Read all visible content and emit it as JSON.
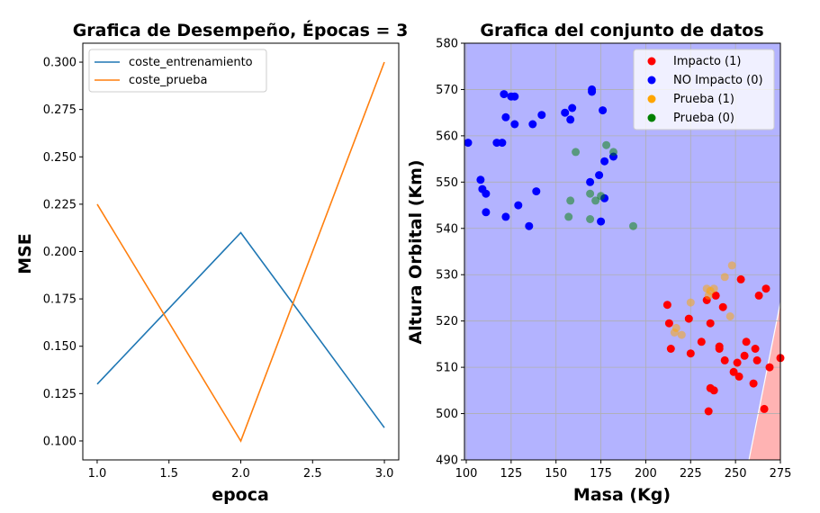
{
  "chart_data": [
    {
      "type": "line",
      "title": "Grafica de Desempeño, Épocas = 3",
      "xlabel": "epoca",
      "ylabel": "MSE",
      "xlim": [
        0.9,
        3.1
      ],
      "ylim": [
        0.09,
        0.31
      ],
      "xticks": [
        "1.0",
        "1.5",
        "2.0",
        "2.5",
        "3.0"
      ],
      "yticks": [
        "0.100",
        "0.125",
        "0.150",
        "0.175",
        "0.200",
        "0.225",
        "0.250",
        "0.275",
        "0.300"
      ],
      "legend_position": "upper-left",
      "grid": false,
      "series": [
        {
          "name": "coste_entrenamiento",
          "color": "#1f77b4",
          "x": [
            1,
            2,
            3
          ],
          "y": [
            0.13,
            0.21,
            0.107
          ]
        },
        {
          "name": "coste_prueba",
          "color": "#ff7f0e",
          "x": [
            1,
            2,
            3
          ],
          "y": [
            0.225,
            0.1,
            0.3
          ]
        }
      ]
    },
    {
      "type": "scatter",
      "title": "Grafica del conjunto de datos",
      "xlabel": "Masa (Kg)",
      "ylabel": "Altura Orbital (Km)",
      "xlim": [
        99,
        275
      ],
      "ylim": [
        490,
        580
      ],
      "xticks": [
        "100",
        "125",
        "150",
        "175",
        "200",
        "225",
        "250",
        "275"
      ],
      "yticks": [
        "490",
        "500",
        "510",
        "520",
        "530",
        "540",
        "550",
        "560",
        "570",
        "580"
      ],
      "grid": true,
      "legend_position": "upper-right",
      "background": {
        "region_0_color": "#b3b3ff",
        "region_1_color": "#ffb3b3",
        "boundary": [
          [
            257.5,
            490
          ],
          [
            275,
            524
          ]
        ]
      },
      "series": [
        {
          "name": "Impacto (1)",
          "color": "#ff0000",
          "points": [
            [
              212,
              523.5
            ],
            [
              213,
              519.5
            ],
            [
              214,
              514
            ],
            [
              224,
              520.5
            ],
            [
              225,
              513
            ],
            [
              231,
              515.5
            ],
            [
              234,
              524.5
            ],
            [
              235,
              500.5
            ],
            [
              236,
              505.5
            ],
            [
              236,
              519.5
            ],
            [
              238,
              505
            ],
            [
              239,
              525.5
            ],
            [
              241,
              514.5
            ],
            [
              241,
              514
            ],
            [
              243,
              523
            ],
            [
              244,
              511.5
            ],
            [
              249,
              509
            ],
            [
              251,
              511
            ],
            [
              252,
              508
            ],
            [
              253,
              529
            ],
            [
              255,
              512.5
            ],
            [
              256,
              515.5
            ],
            [
              260,
              506.5
            ],
            [
              261,
              514
            ],
            [
              262,
              511.5
            ],
            [
              263,
              525.5
            ],
            [
              266,
              501
            ],
            [
              267,
              527
            ],
            [
              269,
              510
            ],
            [
              275,
              512
            ]
          ]
        },
        {
          "name": "NO Impacto (0)",
          "color": "#0000ff",
          "points": [
            [
              101,
              558.5
            ],
            [
              108,
              550.5
            ],
            [
              109,
              548.5
            ],
            [
              111,
              547.5
            ],
            [
              111,
              543.5
            ],
            [
              117,
              558.5
            ],
            [
              120,
              558.5
            ],
            [
              121,
              569
            ],
            [
              122,
              564
            ],
            [
              122,
              542.5
            ],
            [
              125,
              568.5
            ],
            [
              127,
              562.5
            ],
            [
              127,
              568.5
            ],
            [
              129,
              545
            ],
            [
              135,
              540.5
            ],
            [
              137,
              562.5
            ],
            [
              139,
              548
            ],
            [
              142,
              564.5
            ],
            [
              155,
              565
            ],
            [
              158,
              563.5
            ],
            [
              159,
              566
            ],
            [
              169,
              550
            ],
            [
              170,
              570
            ],
            [
              170,
              569.5
            ],
            [
              174,
              551.5
            ],
            [
              175,
              541.5
            ],
            [
              176,
              565.5
            ],
            [
              177,
              554.5
            ],
            [
              177,
              546.5
            ],
            [
              182,
              555.5
            ]
          ]
        },
        {
          "name": "Prueba (1)",
          "color": "#ffa500",
          "points": [
            [
              216,
              517.5
            ],
            [
              217,
              518.5
            ],
            [
              220,
              517
            ],
            [
              225,
              524
            ],
            [
              234,
              527
            ],
            [
              235,
              525.5
            ],
            [
              236,
              526.5
            ],
            [
              238,
              527
            ],
            [
              244,
              529.5
            ],
            [
              247,
              521
            ],
            [
              248,
              532
            ]
          ]
        },
        {
          "name": "Prueba (0)",
          "color": "#008000",
          "points": [
            [
              157,
              542.5
            ],
            [
              158,
              546
            ],
            [
              161,
              556.5
            ],
            [
              169,
              542
            ],
            [
              169,
              547.5
            ],
            [
              172,
              546
            ],
            [
              175,
              547
            ],
            [
              178,
              558
            ],
            [
              182,
              556.5
            ],
            [
              193,
              540.5
            ]
          ]
        }
      ]
    }
  ]
}
